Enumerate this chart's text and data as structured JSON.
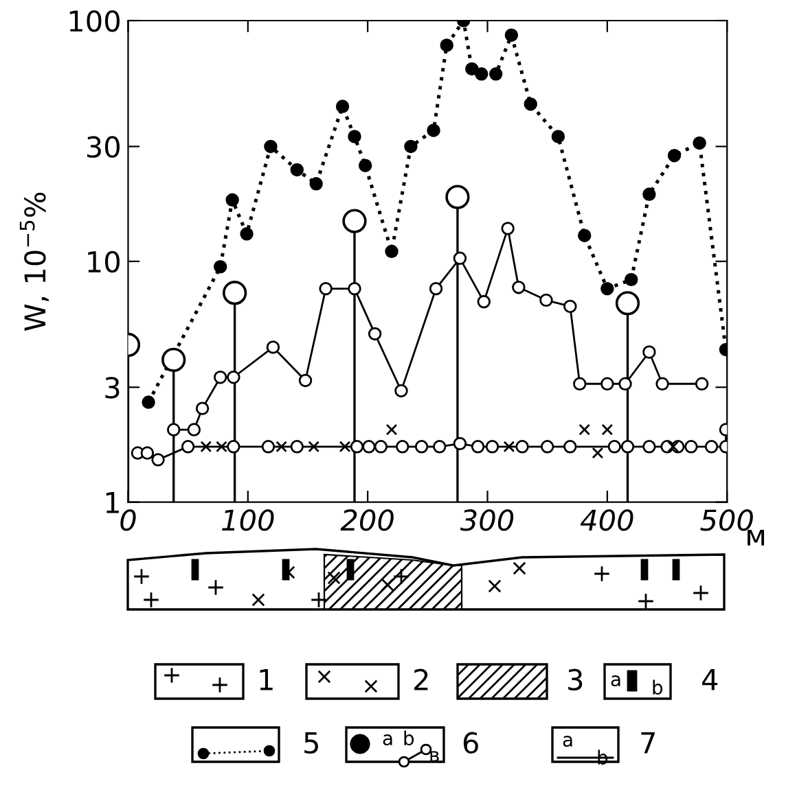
{
  "chart_data": {
    "type": "line",
    "ylabel": "W, 10$^{−5}$%",
    "xlabel": "м",
    "xlim": [
      0,
      500
    ],
    "xticks": [
      0,
      100,
      200,
      300,
      400,
      500
    ],
    "ylim": [
      1,
      100
    ],
    "yticks": [
      1,
      3,
      10,
      30,
      100
    ],
    "log": "y",
    "grid": false,
    "series": [
      {
        "line_style": "dotted",
        "marker": "circle",
        "color": "#000000",
        "x": [
          17,
          77,
          87,
          99,
          119,
          141,
          157,
          179,
          189,
          198,
          220,
          236,
          255,
          266,
          280,
          287,
          295,
          307,
          320,
          336,
          359,
          381,
          400,
          420,
          435,
          456,
          477,
          499
        ],
        "values": [
          2.6,
          9.5,
          18,
          13,
          30,
          24,
          21,
          44,
          33,
          25,
          11,
          30,
          35,
          79,
          100,
          63,
          60,
          60,
          87,
          45,
          33,
          12.8,
          7.7,
          8.4,
          19,
          27.5,
          31,
          4.3
        ]
      },
      {
        "line_style": "solid",
        "marker": "circle",
        "color": "#000000",
        "x": [
          38,
          55,
          62,
          77,
          88,
          121,
          148,
          165,
          189,
          206,
          228,
          257,
          277,
          297,
          317,
          326,
          349,
          369,
          377,
          400,
          415,
          435,
          446,
          479
        ],
        "values": [
          2.0,
          2.0,
          2.45,
          3.3,
          3.3,
          4.4,
          3.2,
          7.7,
          7.7,
          5.0,
          2.9,
          7.7,
          10.3,
          6.8,
          13.7,
          7.8,
          6.9,
          6.5,
          3.1,
          3.1,
          3.1,
          4.2,
          3.1,
          3.1
        ]
      },
      {
        "type": "lollipop",
        "marker": "circle",
        "color": "#000000",
        "x": [
          0,
          38,
          89,
          189,
          275,
          417
        ],
        "values": [
          4.5,
          3.9,
          7.4,
          14.7,
          18.5,
          6.7
        ]
      },
      {
        "line_style": "solid",
        "marker": "circle",
        "color": "#000000",
        "x": [
          8,
          16,
          25,
          50,
          88,
          117,
          141,
          191,
          201,
          211,
          229,
          245,
          260,
          277,
          292,
          304,
          329,
          350,
          369,
          406,
          417,
          435,
          450,
          459,
          470,
          487,
          499,
          499
        ],
        "values": [
          1.6,
          1.6,
          1.5,
          1.7,
          1.7,
          1.7,
          1.7,
          1.7,
          1.7,
          1.7,
          1.7,
          1.7,
          1.7,
          1.75,
          1.7,
          1.7,
          1.7,
          1.7,
          1.7,
          1.7,
          1.7,
          1.7,
          1.7,
          1.7,
          1.7,
          1.7,
          1.7,
          2.0
        ]
      },
      {
        "type": "scatter",
        "marker": "cross",
        "color": "#000000",
        "x": [
          65,
          78,
          128,
          155,
          181,
          220,
          318,
          381,
          392,
          400,
          455
        ],
        "values": [
          1.7,
          1.7,
          1.7,
          1.7,
          1.7,
          2.0,
          1.7,
          2.0,
          1.6,
          2.0,
          1.7
        ]
      }
    ],
    "annotations": [
      "1",
      "2",
      "3",
      "4",
      "5",
      "6",
      "7",
      "a",
      "b",
      "a",
      "b",
      "в",
      "a",
      "b"
    ]
  }
}
